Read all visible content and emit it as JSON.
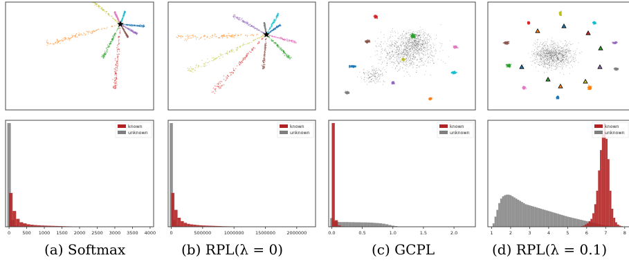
{
  "captions": {
    "a": "(a) Softmax",
    "b": "(b) RPL(λ = 0)",
    "c": "(c) GCPL",
    "d": "(d) RPL(λ = 0.1)"
  },
  "legend": {
    "known": "known",
    "unknown": "unknown"
  },
  "colors": {
    "known": "#b22222",
    "unknown": "#7f7f7f",
    "palette": [
      "#1f77b4",
      "#ff7f0e",
      "#2ca02c",
      "#d62728",
      "#9467bd",
      "#8c564b",
      "#e377c2",
      "#7f7f7f",
      "#bcbd22",
      "#17becf"
    ]
  },
  "chart_data": [
    {
      "type": "histogram",
      "panel": "a",
      "x_ticks": [
        "0",
        "500",
        "1000",
        "1500",
        "2000",
        "2500",
        "3000",
        "3500",
        "4000"
      ],
      "xlim": [
        -100,
        4100
      ],
      "bin_width": 100,
      "series": [
        {
          "name": "known",
          "values": [
            30,
            14,
            7,
            4,
            3,
            2.2,
            1.8,
            1.5,
            1.3,
            1.1,
            1.0,
            0.9,
            0.8,
            0.7,
            0.6,
            0.5,
            0.4,
            0.35,
            0.3,
            0.25,
            0.2,
            0.15,
            0.12,
            0.1
          ]
        },
        {
          "name": "unknown",
          "values": [
            92,
            6,
            1.2,
            0.5,
            0.3,
            0.2,
            0.1
          ]
        }
      ]
    },
    {
      "type": "histogram",
      "panel": "b",
      "x_ticks": [
        "0",
        "500000",
        "1000000",
        "1500000",
        "2000000"
      ],
      "xlim": [
        -50000,
        2300000
      ],
      "bin_width": 50000,
      "series": [
        {
          "name": "known",
          "values": [
            30,
            15,
            8,
            5,
            3.5,
            2.6,
            2.1,
            1.8,
            1.5,
            1.3,
            1.1,
            1.0,
            0.9,
            0.8,
            0.7,
            0.6,
            0.5,
            0.45,
            0.4,
            0.35,
            0.3,
            0.25,
            0.2,
            0.18,
            0.15,
            0.12,
            0.1,
            0.08,
            0.06,
            0.05
          ]
        },
        {
          "name": "unknown",
          "values": [
            92,
            6,
            1.2,
            0.5,
            0.3,
            0.2,
            0.1
          ]
        }
      ]
    },
    {
      "type": "histogram",
      "panel": "c",
      "x_ticks": [
        "0.0",
        "0.5",
        "1.0",
        "1.5",
        "2.0"
      ],
      "xlim": [
        -0.05,
        2.35
      ],
      "bin_width": 0.05,
      "series": [
        {
          "name": "known",
          "values": [
            95,
            6,
            1.2,
            0.4,
            0.2
          ]
        },
        {
          "name": "unknown",
          "values": [
            8,
            5,
            4.5,
            4.3,
            4.3,
            4.3,
            4.2,
            4.2,
            4.1,
            4.1,
            4.0,
            4.0,
            3.9,
            3.8,
            3.6,
            3.4,
            3.2,
            2.8,
            2.3,
            1.6,
            1.0,
            0.6,
            0.3,
            0.15
          ]
        }
      ]
    },
    {
      "type": "histogram",
      "panel": "d",
      "x_ticks": [
        "1",
        "2",
        "3",
        "4",
        "5",
        "6",
        "7",
        "8"
      ],
      "xlim": [
        0.8,
        8.3
      ],
      "bin_width": 0.1,
      "series": [
        {
          "name": "known",
          "x_start": 5.6,
          "values": [
            0.3,
            0.6,
            1.0,
            2,
            3,
            5,
            7,
            12,
            20,
            32,
            50,
            68,
            82,
            92,
            78,
            60,
            32,
            16,
            8,
            4,
            2,
            1,
            0.5,
            0.2
          ]
        },
        {
          "name": "unknown",
          "x_start": 1.05,
          "values": [
            3,
            9,
            15,
            21,
            25,
            27,
            28,
            28.5,
            28.5,
            28,
            27,
            26,
            25,
            24,
            23,
            22,
            21,
            20,
            19.5,
            19,
            18.5,
            18,
            17.5,
            17,
            16.5,
            16,
            15.5,
            15,
            14.5,
            14,
            13.5,
            13,
            12.5,
            12,
            11.5,
            11,
            10.5,
            10,
            9.5,
            9,
            8.6,
            8.2,
            7.8,
            7.4,
            7,
            6.6,
            6.2,
            5.8,
            5.4,
            5,
            4.6,
            4.2,
            3.8,
            3.4,
            3,
            2.6,
            2.2,
            1.8,
            1.5,
            1.2,
            1.0,
            0.8,
            0.6,
            0.4,
            0.3,
            0.2
          ]
        }
      ]
    }
  ]
}
